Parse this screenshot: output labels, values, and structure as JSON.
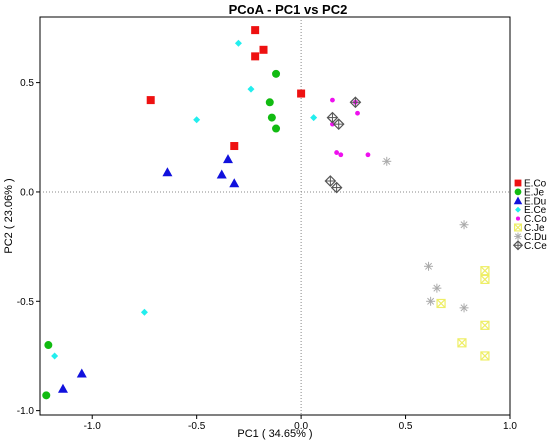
{
  "chart_data": {
    "type": "scatter",
    "title": "PCoA - PC1 vs PC2",
    "xlabel": "PC1 ( 34.65% )",
    "ylabel": "PC2 ( 23.06% )",
    "xlim": [
      -1.25,
      1.0
    ],
    "ylim": [
      -1.02,
      0.8
    ],
    "xticks": [
      -1.0,
      -0.5,
      0.0,
      0.5,
      1.0
    ],
    "xtick_labels": [
      "-1.0",
      "-0.5",
      "0.0",
      "0.5",
      "1.0"
    ],
    "yticks": [
      -1.0,
      -0.5,
      0.0,
      0.5
    ],
    "ytick_labels": [
      "-1.0",
      "-0.5",
      "0.0",
      "0.5"
    ],
    "reference_lines": {
      "x": 0,
      "y": 0,
      "style": "dotted"
    },
    "legend_position": "right",
    "series": [
      {
        "name": "E.Co",
        "marker": "square",
        "color": "#ee1111",
        "points": [
          [
            -0.22,
            0.74
          ],
          [
            -0.18,
            0.65
          ],
          [
            -0.22,
            0.62
          ],
          [
            -0.72,
            0.42
          ],
          [
            0.0,
            0.45
          ],
          [
            -0.32,
            0.21
          ]
        ]
      },
      {
        "name": "E.Je",
        "marker": "circle",
        "color": "#11bb11",
        "points": [
          [
            -0.12,
            0.54
          ],
          [
            -0.15,
            0.41
          ],
          [
            -0.14,
            0.34
          ],
          [
            -0.12,
            0.29
          ],
          [
            -1.21,
            -0.7
          ],
          [
            -1.22,
            -0.93
          ]
        ]
      },
      {
        "name": "E.Du",
        "marker": "triangle",
        "color": "#1111dd",
        "points": [
          [
            -0.64,
            0.09
          ],
          [
            -0.35,
            0.15
          ],
          [
            -0.38,
            0.08
          ],
          [
            -0.32,
            0.04
          ],
          [
            -1.05,
            -0.83
          ],
          [
            -1.14,
            -0.9
          ]
        ]
      },
      {
        "name": "E.Ce",
        "marker": "diamond",
        "color": "#22eeee",
        "points": [
          [
            -0.3,
            0.68
          ],
          [
            -0.24,
            0.47
          ],
          [
            -0.5,
            0.33
          ],
          [
            0.06,
            0.34
          ],
          [
            -0.75,
            -0.55
          ],
          [
            -1.18,
            -0.75
          ]
        ]
      },
      {
        "name": "C.Co",
        "marker": "dot",
        "color": "#ee11ee",
        "points": [
          [
            0.15,
            0.42
          ],
          [
            0.26,
            0.41
          ],
          [
            0.27,
            0.36
          ],
          [
            0.15,
            0.31
          ],
          [
            0.17,
            0.18
          ],
          [
            0.19,
            0.17
          ],
          [
            0.32,
            0.17
          ]
        ]
      },
      {
        "name": "C.Je",
        "marker": "boxcross",
        "color": "#eeee66",
        "points": [
          [
            0.88,
            -0.36
          ],
          [
            0.88,
            -0.4
          ],
          [
            0.67,
            -0.51
          ],
          [
            0.88,
            -0.61
          ],
          [
            0.77,
            -0.69
          ],
          [
            0.88,
            -0.75
          ]
        ]
      },
      {
        "name": "C.Du",
        "marker": "asterisk",
        "color": "#aaaaaa",
        "points": [
          [
            0.41,
            0.14
          ],
          [
            0.78,
            -0.15
          ],
          [
            0.61,
            -0.34
          ],
          [
            0.65,
            -0.44
          ],
          [
            0.62,
            -0.5
          ],
          [
            0.78,
            -0.53
          ]
        ]
      },
      {
        "name": "C.Ce",
        "marker": "diamondplus",
        "color": "#555555",
        "points": [
          [
            0.26,
            0.41
          ],
          [
            0.15,
            0.34
          ],
          [
            0.18,
            0.31
          ],
          [
            0.14,
            0.05
          ],
          [
            0.17,
            0.02
          ]
        ]
      }
    ]
  }
}
